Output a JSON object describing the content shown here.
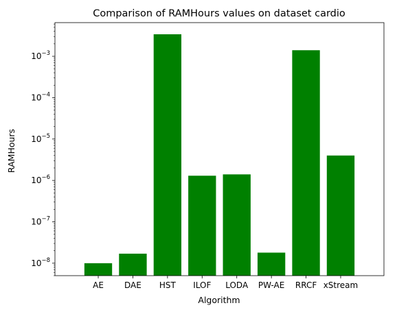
{
  "chart_data": {
    "type": "bar",
    "title": "Comparison of RAMHours values on dataset cardio",
    "xlabel": "Algorithm",
    "ylabel": "RAMHours",
    "yscale": "log",
    "ylim": [
      5e-09,
      0.0065
    ],
    "grid": false,
    "legend": "none",
    "bar_color": "#008000",
    "categories": [
      "AE",
      "DAE",
      "HST",
      "ILOF",
      "LODA",
      "PW-AE",
      "RRCF",
      "xStream"
    ],
    "values": [
      1e-08,
      1.7e-08,
      0.0034,
      1.3e-06,
      1.4e-06,
      1.8e-08,
      0.0014,
      4e-06
    ],
    "y_ticks": [
      {
        "value": 1e-08,
        "base": "10",
        "exp": "−8"
      },
      {
        "value": 1e-07,
        "base": "10",
        "exp": "−7"
      },
      {
        "value": 1e-06,
        "base": "10",
        "exp": "−6"
      },
      {
        "value": 1e-05,
        "base": "10",
        "exp": "−5"
      },
      {
        "value": 0.0001,
        "base": "10",
        "exp": "−4"
      },
      {
        "value": 0.001,
        "base": "10",
        "exp": "−3"
      }
    ]
  }
}
